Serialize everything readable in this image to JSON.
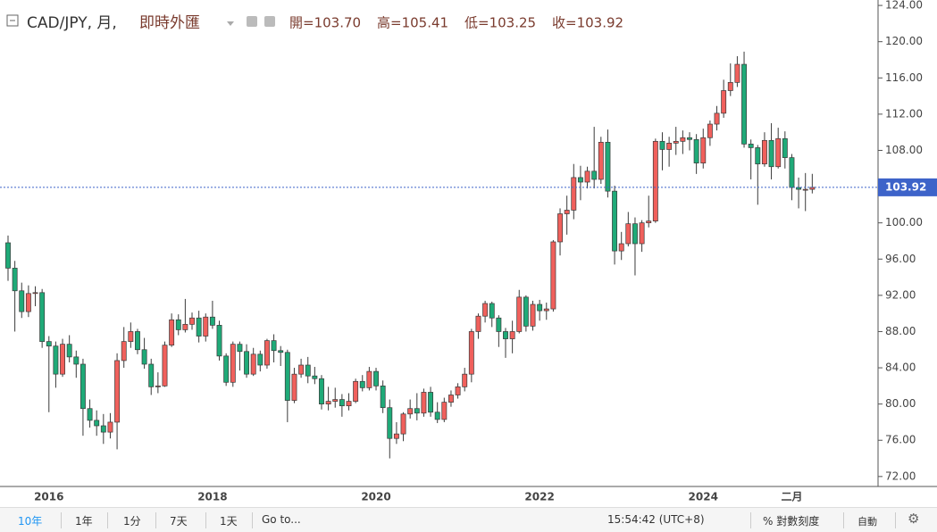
{
  "header": {
    "symbol": "CAD/JPY, 月,",
    "source": "即時外匯",
    "ohlc": [
      "開=103.70",
      "高=105.41",
      "低=103.25",
      "收=103.92"
    ]
  },
  "toolbar": {
    "ranges": [
      "10年",
      "1年",
      "1分",
      "7天",
      "1天"
    ],
    "goto": "Go to...",
    "time": "15:54:42 (UTC+8)",
    "log_scale": "% 對數刻度",
    "auto": "自動"
  },
  "chart_data": {
    "type": "candlestick",
    "categories": [
      null,
      null,
      null,
      null,
      null,
      null,
      "2016",
      null,
      null,
      null,
      null,
      null,
      null,
      null,
      null,
      null,
      null,
      null,
      null,
      null,
      null,
      null,
      null,
      null,
      null,
      null,
      null,
      null,
      null,
      null,
      "2018",
      null,
      null,
      null,
      null,
      null,
      null,
      null,
      null,
      null,
      null,
      null,
      null,
      null,
      null,
      null,
      null,
      null,
      null,
      null,
      null,
      null,
      null,
      null,
      "2020",
      null,
      null,
      null,
      null,
      null,
      null,
      null,
      null,
      null,
      null,
      null,
      null,
      null,
      null,
      null,
      null,
      null,
      null,
      null,
      null,
      null,
      null,
      null,
      "2022",
      null,
      null,
      null,
      null,
      null,
      null,
      null,
      null,
      null,
      null,
      null,
      null,
      null,
      null,
      null,
      null,
      null,
      null,
      null,
      null,
      null,
      null,
      null,
      "2024",
      null,
      null,
      null,
      null,
      null,
      null,
      null,
      null,
      null,
      null,
      null,
      null,
      "二月",
      null,
      null,
      null
    ],
    "open": [
      97.8,
      95.0,
      92.5,
      90.2,
      92.2,
      92.3,
      86.9,
      86.4,
      83.3,
      86.6,
      85.2,
      84.4,
      79.5,
      78.2,
      77.6,
      76.9,
      78.0,
      84.8,
      86.9,
      88.0,
      86.0,
      84.4,
      81.9,
      82.0,
      86.5,
      89.3,
      88.2,
      88.8,
      89.5,
      87.5,
      89.6,
      88.7,
      85.3,
      82.4,
      86.6,
      85.8,
      83.3,
      85.5,
      84.3,
      87.0,
      85.9,
      85.7,
      80.4,
      83.3,
      84.3,
      83.1,
      82.8,
      80.0,
      80.3,
      80.5,
      79.8,
      80.3,
      82.5,
      81.8,
      83.6,
      82.0,
      79.6,
      76.2,
      76.7,
      78.9,
      79.5,
      79.0,
      81.3,
      79.1,
      78.3,
      80.2,
      81.0,
      81.9,
      83.3,
      88.0,
      89.7,
      91.1,
      89.5,
      88.0,
      87.2,
      88.0,
      91.8,
      88.6,
      91.0,
      90.3,
      90.5,
      97.9,
      101.0,
      101.4,
      105.0,
      104.5,
      105.7,
      104.8,
      108.9,
      103.5,
      96.9,
      97.7,
      99.9,
      97.7,
      100.0,
      100.2,
      109.0,
      108.1,
      108.8,
      109.0,
      109.4,
      109.2,
      106.6,
      109.4,
      110.9,
      112.1,
      114.6,
      115.5,
      117.5,
      108.7,
      108.3,
      106.5,
      109.1,
      106.2,
      109.3,
      107.2,
      103.9,
      103.7,
      103.7
    ],
    "high": [
      98.6,
      95.8,
      93.4,
      93.1,
      93.0,
      92.7,
      87.5,
      86.9,
      87.2,
      87.6,
      85.9,
      85.0,
      80.5,
      79.3,
      78.9,
      79.0,
      85.6,
      88.5,
      89.0,
      88.3,
      87.3,
      85.0,
      83.5,
      86.9,
      90.0,
      89.9,
      91.6,
      90.1,
      90.3,
      90.0,
      91.4,
      89.2,
      85.6,
      86.9,
      86.9,
      86.6,
      86.2,
      85.9,
      87.2,
      87.7,
      86.4,
      86.0,
      84.0,
      85.0,
      85.2,
      84.1,
      83.2,
      81.9,
      81.8,
      81.1,
      81.2,
      82.8,
      83.2,
      84.1,
      84.0,
      82.6,
      80.5,
      78.0,
      79.1,
      80.5,
      81.2,
      81.7,
      81.9,
      80.2,
      80.7,
      81.5,
      82.3,
      84.0,
      88.3,
      90.0,
      91.4,
      91.3,
      89.8,
      88.4,
      89.2,
      92.6,
      92.0,
      91.4,
      91.5,
      91.2,
      98.1,
      101.6,
      103.0,
      106.5,
      106.3,
      106.2,
      110.6,
      109.5,
      110.3,
      104.1,
      99.0,
      101.2,
      100.6,
      100.3,
      103.0,
      109.3,
      110.0,
      109.5,
      110.6,
      110.2,
      110.0,
      109.8,
      110.4,
      111.3,
      112.9,
      115.8,
      117.6,
      118.4,
      118.9,
      109.2,
      108.6,
      110.0,
      111.0,
      110.5,
      110.1,
      107.6,
      105.0,
      105.5,
      105.41
    ],
    "low": [
      93.6,
      88.0,
      89.5,
      89.6,
      90.8,
      86.2,
      79.1,
      81.8,
      83.0,
      84.6,
      82.9,
      76.5,
      77.4,
      76.5,
      75.6,
      76.2,
      75.0,
      84.0,
      86.2,
      85.5,
      83.9,
      81.0,
      81.2,
      81.9,
      86.3,
      87.6,
      87.9,
      88.2,
      86.8,
      86.9,
      88.3,
      84.8,
      82.0,
      81.9,
      83.7,
      82.9,
      83.1,
      83.6,
      83.9,
      84.6,
      84.2,
      78.0,
      80.1,
      82.9,
      82.3,
      82.2,
      79.4,
      79.3,
      79.6,
      78.6,
      79.3,
      80.1,
      81.4,
      81.5,
      81.5,
      79.0,
      74.0,
      75.6,
      75.9,
      78.4,
      78.2,
      78.6,
      78.6,
      77.9,
      78.0,
      79.7,
      80.6,
      81.4,
      82.4,
      87.2,
      89.0,
      88.5,
      86.3,
      85.1,
      85.6,
      87.8,
      88.0,
      88.1,
      89.2,
      89.3,
      90.2,
      96.4,
      98.7,
      100.4,
      102.5,
      103.8,
      103.8,
      104.3,
      102.8,
      95.4,
      95.9,
      97.4,
      94.2,
      96.8,
      99.5,
      100.0,
      105.8,
      106.2,
      107.5,
      107.6,
      108.0,
      105.4,
      106.0,
      108.5,
      110.2,
      111.6,
      114.0,
      115.0,
      108.3,
      104.8,
      102.0,
      106.2,
      104.8,
      106.0,
      106.0,
      102.5,
      101.6,
      101.3,
      103.25
    ],
    "close": [
      95.0,
      92.5,
      90.2,
      92.2,
      92.3,
      86.9,
      86.4,
      83.3,
      86.6,
      85.2,
      84.4,
      79.5,
      78.2,
      77.6,
      76.9,
      78.0,
      84.8,
      86.9,
      88.0,
      86.0,
      84.4,
      81.9,
      82.0,
      86.5,
      89.3,
      88.2,
      88.8,
      89.5,
      87.5,
      89.6,
      88.7,
      85.3,
      82.4,
      86.6,
      85.8,
      83.3,
      85.5,
      84.3,
      87.0,
      85.9,
      85.7,
      80.4,
      83.3,
      84.3,
      83.1,
      82.8,
      80.0,
      80.3,
      80.5,
      79.8,
      80.3,
      82.5,
      81.8,
      83.6,
      82.0,
      79.6,
      76.2,
      76.7,
      78.9,
      79.5,
      79.0,
      81.3,
      79.1,
      78.3,
      80.2,
      81.0,
      81.9,
      83.3,
      88.0,
      89.7,
      91.1,
      89.5,
      88.0,
      87.2,
      88.0,
      91.8,
      88.6,
      91.0,
      90.3,
      90.5,
      97.9,
      101.0,
      101.4,
      105.0,
      104.5,
      105.7,
      104.8,
      108.9,
      103.5,
      96.9,
      97.7,
      99.9,
      97.7,
      100.0,
      100.2,
      109.0,
      108.1,
      108.8,
      109.0,
      109.4,
      109.2,
      106.6,
      109.4,
      110.9,
      112.1,
      114.6,
      115.5,
      117.5,
      108.7,
      108.3,
      106.5,
      109.1,
      106.2,
      109.3,
      107.2,
      103.9,
      103.7,
      103.7,
      103.92
    ],
    "up_color": "#f0605c",
    "down_color": "#1faa78",
    "border_color": "#3a3a3a",
    "price_line_color": "#3d63c9",
    "ylim": [
      70.9,
      124.6
    ],
    "yticks": [
      {
        "value": 72,
        "label": "72.00"
      },
      {
        "value": 76,
        "label": "76.00"
      },
      {
        "value": 80,
        "label": "80.00"
      },
      {
        "value": 84,
        "label": "84.00"
      },
      {
        "value": 88,
        "label": "88.00"
      },
      {
        "value": 92,
        "label": "92.00"
      },
      {
        "value": 96,
        "label": "96.00"
      },
      {
        "value": 100,
        "label": "100.00"
      },
      {
        "value": 104,
        "label": "104.00"
      },
      {
        "value": 108,
        "label": "108.00"
      },
      {
        "value": 112,
        "label": "112.00"
      },
      {
        "value": 116,
        "label": "116.00"
      },
      {
        "value": 120,
        "label": "120.00"
      },
      {
        "value": 124,
        "label": "124.00"
      }
    ],
    "price_line": true,
    "grid": false
  }
}
